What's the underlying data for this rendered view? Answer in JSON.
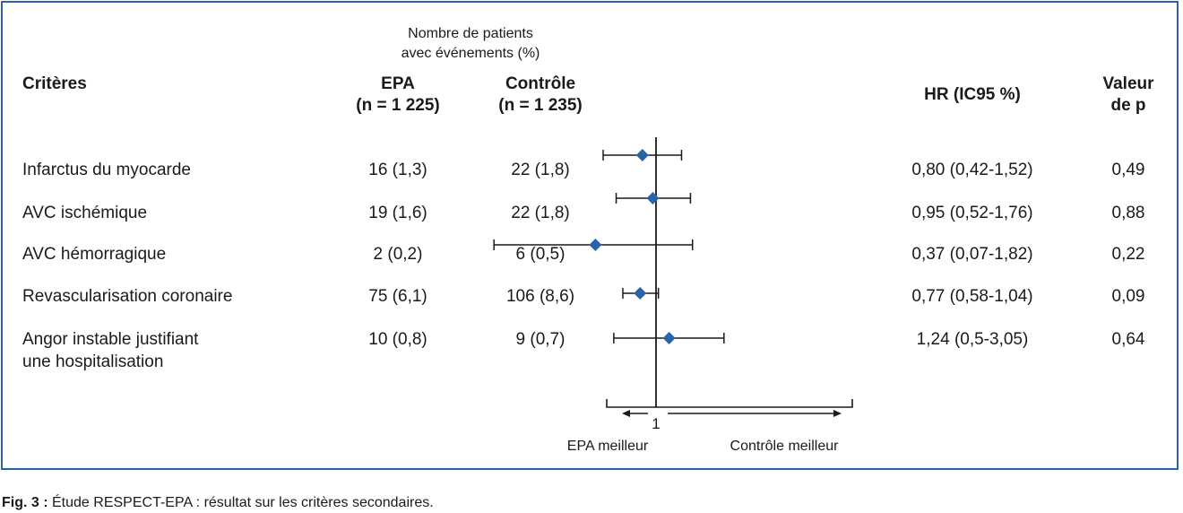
{
  "header": {
    "group_title": [
      "Nombre de patients",
      "avec événements (%)"
    ],
    "criteria": "Critères",
    "epa": [
      "EPA",
      "(n = 1 225)"
    ],
    "control": [
      "Contrôle",
      "(n = 1 235)"
    ],
    "hr": "HR (IC95 %)",
    "pvalue": [
      "Valeur",
      "de p"
    ]
  },
  "rows": [
    {
      "label": [
        "Infarctus du myocarde"
      ],
      "epa": "16 (1,3)",
      "control": "22 (1,8)",
      "hr": "0,80 (0,42-1,52)",
      "p": "0,49"
    },
    {
      "label": [
        "AVC ischémique"
      ],
      "epa": "19 (1,6)",
      "control": "22 (1,8)",
      "hr": "0,95 (0,52-1,76)",
      "p": "0,88"
    },
    {
      "label": [
        "AVC hémorragique"
      ],
      "epa": "2 (0,2)",
      "control": "6 (0,5)",
      "hr": "0,37 (0,07-1,82)",
      "p": "0,22"
    },
    {
      "label": [
        "Revascularisation coronaire"
      ],
      "epa": "75 (6,1)",
      "control": "106 (8,6)",
      "hr": "0,77 (0,58-1,04)",
      "p": "0,09"
    },
    {
      "label": [
        "Angor instable justifiant",
        "une hospitalisation"
      ],
      "epa": "10 (0,8)",
      "control": "9 (0,7)",
      "hr": "1,24 (0,5-3,05)",
      "p": "0,64"
    }
  ],
  "axis": {
    "reference_label": "1",
    "left_label": "EPA meilleur",
    "right_label": "Contrôle meilleur"
  },
  "caption": {
    "prefix": "Fig. 3 :",
    "text": " Étude RESPECT-EPA : résultat sur les critères secondaires."
  },
  "colors": {
    "marker": "#2a64a8",
    "frame": "#2a64a8",
    "line": "#1a1a1a"
  },
  "chart_data": {
    "type": "forest",
    "reference": 1,
    "x_scale": "log",
    "series": [
      {
        "name": "Infarctus du myocarde",
        "hr": 0.8,
        "lo": 0.42,
        "hi": 1.52
      },
      {
        "name": "AVC ischémique",
        "hr": 0.95,
        "lo": 0.52,
        "hi": 1.76
      },
      {
        "name": "AVC hémorragique",
        "hr": 0.37,
        "lo": 0.07,
        "hi": 1.82
      },
      {
        "name": "Revascularisation coronaire",
        "hr": 0.77,
        "lo": 0.58,
        "hi": 1.04
      },
      {
        "name": "Angor instable justifiant une hospitalisation",
        "hr": 1.24,
        "lo": 0.5,
        "hi": 3.05
      }
    ]
  }
}
